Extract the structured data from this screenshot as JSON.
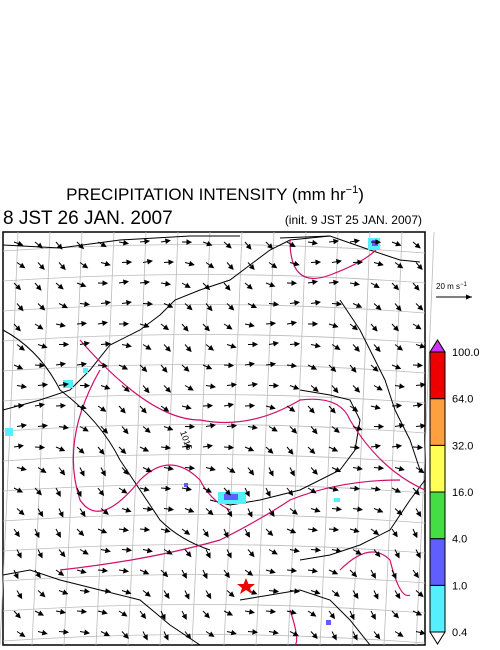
{
  "header": {
    "title": {
      "text": "PRECIPITATION INTENSITY (mm hr",
      "sup": "−1",
      "tail": ")"
    },
    "valid_time": "8 JST 26 JAN. 2007",
    "init_time": "(init. 9 JST 25 JAN. 2007)"
  },
  "map": {
    "contour_label": "1016"
  },
  "vector_legend": {
    "text": "20 m s",
    "sup": "−1"
  },
  "colorbar": {
    "levels": [
      {
        "value": 0.4,
        "label": "0.4"
      },
      {
        "value": 1,
        "label": "1.0"
      },
      {
        "value": 4,
        "label": "4.0"
      },
      {
        "value": 16,
        "label": "16.0"
      },
      {
        "value": 32,
        "label": "32.0"
      },
      {
        "value": 64,
        "label": "64.0"
      },
      {
        "value": 100,
        "label": "100.0"
      }
    ],
    "colors": [
      "#ffffff",
      "#55f0ff",
      "#5f5fff",
      "#44dd44",
      "#ffff55",
      "#ffa040",
      "#ee0000",
      "#cc33ff"
    ]
  }
}
